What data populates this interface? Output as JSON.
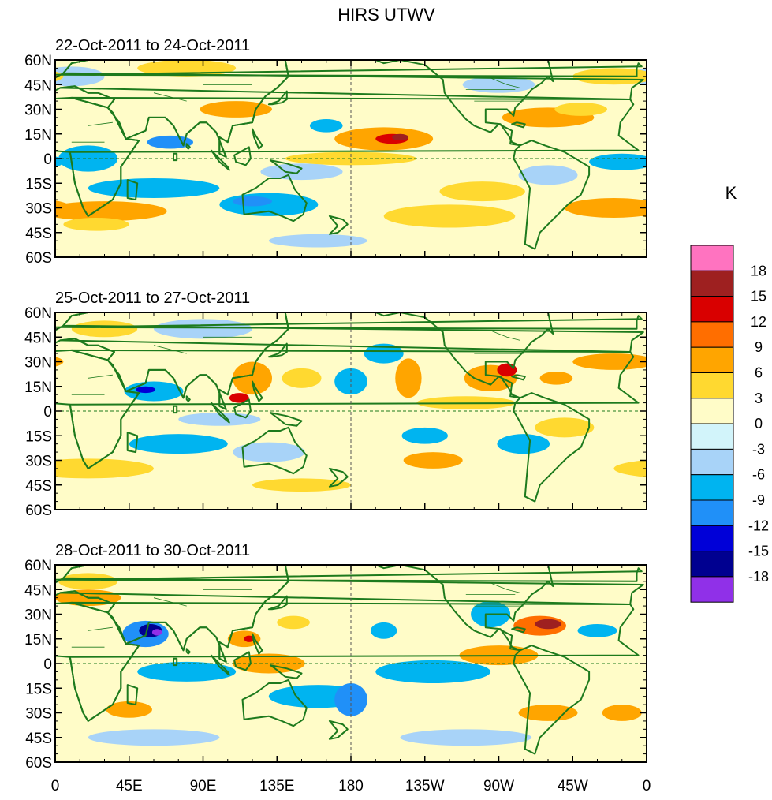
{
  "title": "HIRS UTWV",
  "panels": [
    {
      "period": "22-Oct-2011 to 24-Oct-2011"
    },
    {
      "period": "25-Oct-2011 to 27-Oct-2011"
    },
    {
      "period": "28-Oct-2011 to 30-Oct-2011"
    }
  ],
  "lat_labels": [
    "60N",
    "45N",
    "30N",
    "15N",
    "0",
    "15S",
    "30S",
    "45S",
    "60S"
  ],
  "lon_labels": [
    "0",
    "45E",
    "90E",
    "135E",
    "180",
    "135W",
    "90W",
    "45W",
    "0"
  ],
  "colorbar": {
    "unit": "K",
    "levels": [
      "18",
      "15",
      "12",
      "9",
      "6",
      "3",
      "0",
      "-3",
      "-6",
      "-9",
      "-12",
      "-15",
      "-18"
    ],
    "colors": [
      "#ff73c0",
      "#9e2020",
      "#d90000",
      "#ff6e00",
      "#ffa500",
      "#ffd930",
      "#fffcc8",
      "#d2f4fa",
      "#a8d3f8",
      "#00b4f0",
      "#2090f8",
      "#0000d8",
      "#000090",
      "#9030e8"
    ]
  },
  "map_colors": {
    "coast": "#1d7a1d",
    "ocean_base": "#fffcc8"
  }
}
